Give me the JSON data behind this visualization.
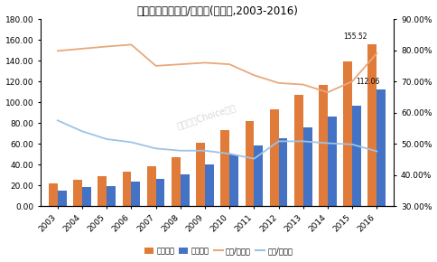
{
  "years": [
    "2003",
    "2004",
    "2005",
    "2006",
    "2007",
    "2008",
    "2009",
    "2010",
    "2011",
    "2012",
    "2013",
    "2014",
    "2015",
    "2016"
  ],
  "deposits": [
    22.0,
    25.0,
    29.0,
    33.5,
    38.5,
    47.0,
    61.0,
    73.0,
    82.0,
    93.0,
    107.0,
    117.0,
    139.0,
    155.52
  ],
  "loans": [
    15.0,
    18.0,
    19.5,
    23.5,
    26.5,
    30.5,
    40.0,
    50.0,
    58.0,
    65.5,
    76.0,
    86.0,
    97.0,
    112.06
  ],
  "deposit_ratio": [
    0.798,
    0.805,
    0.812,
    0.818,
    0.75,
    0.755,
    0.76,
    0.755,
    0.72,
    0.695,
    0.69,
    0.665,
    0.7,
    0.79
  ],
  "loan_ratio": [
    0.575,
    0.54,
    0.515,
    0.505,
    0.485,
    0.478,
    0.478,
    0.468,
    0.452,
    0.508,
    0.508,
    0.502,
    0.498,
    0.476
  ],
  "title": "銀行业金融机构存/贷款额(万亿元,2003-2016)",
  "deposit_label": "各项存款",
  "loan_label": "各项贷款",
  "deposit_ratio_label": "存款/负债比",
  "loan_ratio_label": "贷款/资产比",
  "deposit_color": "#E07B39",
  "loan_color": "#4472C4",
  "deposit_ratio_color": "#E8A87C",
  "loan_ratio_color": "#9DC3E6",
  "bg_color": "#FFFFFF",
  "ylim_left": [
    0,
    180
  ],
  "ylim_right": [
    0.3,
    0.9
  ],
  "yticks_left": [
    0.0,
    20.0,
    40.0,
    60.0,
    80.0,
    100.0,
    120.0,
    140.0,
    160.0,
    180.0
  ],
  "yticks_right": [
    0.3,
    0.4,
    0.5,
    0.6,
    0.7,
    0.8,
    0.9
  ],
  "annotation_deposit": "155.52",
  "annotation_loan": "112.06",
  "watermark": "东方财富Choice数据"
}
